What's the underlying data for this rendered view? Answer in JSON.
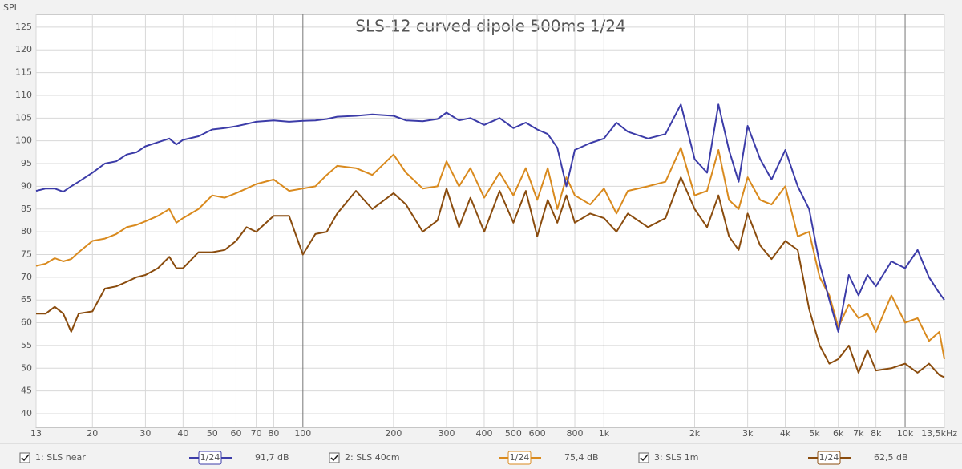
{
  "chart_data": {
    "type": "line",
    "title": "SLS-12 curved dipole 500ms 1/24",
    "y_label": "SPL",
    "x_scale": "log",
    "grid": true,
    "xlim": [
      13,
      13500
    ],
    "ylim": [
      37,
      127.8
    ],
    "yticks": [
      40,
      45,
      50,
      55,
      60,
      65,
      70,
      75,
      80,
      85,
      90,
      95,
      100,
      105,
      110,
      115,
      120,
      125
    ],
    "xticks": [
      13,
      20,
      30,
      40,
      50,
      60,
      70,
      80,
      100,
      200,
      300,
      400,
      500,
      600,
      800,
      {
        "value": 1000,
        "label": "1k"
      },
      {
        "value": 2000,
        "label": "2k"
      },
      {
        "value": 3000,
        "label": "3k"
      },
      {
        "value": 4000,
        "label": "4k"
      },
      {
        "value": 5000,
        "label": "5k"
      },
      {
        "value": 6000,
        "label": "6k"
      },
      {
        "value": 7000,
        "label": "7k"
      },
      {
        "value": 8000,
        "label": "8k"
      },
      {
        "value": 10000,
        "label": "10k"
      },
      {
        "value": 13500,
        "label": "13,5kHz"
      }
    ],
    "x": [
      13,
      14,
      15,
      16,
      17,
      18,
      20,
      22,
      24,
      26,
      28,
      30,
      33,
      36,
      38,
      40,
      45,
      50,
      55,
      60,
      65,
      70,
      80,
      90,
      100,
      110,
      120,
      130,
      150,
      170,
      200,
      220,
      250,
      280,
      300,
      330,
      360,
      400,
      450,
      500,
      550,
      600,
      650,
      700,
      750,
      800,
      900,
      1000,
      1100,
      1200,
      1400,
      1600,
      1800,
      2000,
      2200,
      2400,
      2600,
      2800,
      3000,
      3300,
      3600,
      4000,
      4400,
      4800,
      5200,
      5600,
      6000,
      6500,
      7000,
      7500,
      8000,
      9000,
      10000,
      11000,
      12000,
      13000,
      13500
    ],
    "series": [
      {
        "name": "1: SLS near",
        "color": "#3c3ca8",
        "smoothing": "1/24",
        "level": "91,7 dB",
        "values": [
          89,
          89.5,
          89.5,
          88.8,
          90,
          91,
          93,
          95,
          95.5,
          97,
          97.5,
          98.8,
          99.7,
          100.5,
          99.2,
          100.2,
          101,
          102.5,
          102.8,
          103.2,
          103.7,
          104.2,
          104.5,
          104.2,
          104.4,
          104.5,
          104.8,
          105.3,
          105.5,
          105.8,
          105.5,
          104.5,
          104.3,
          104.8,
          106.2,
          104.5,
          105,
          103.5,
          105,
          102.8,
          104,
          102.5,
          101.5,
          98.5,
          90,
          98,
          99.5,
          100.5,
          104,
          102,
          100.5,
          101.5,
          108,
          96,
          93,
          108,
          98,
          91,
          103.3,
          96,
          91.5,
          98,
          90,
          85,
          73,
          65,
          58,
          70.5,
          66,
          70.5,
          68,
          73.5,
          72,
          76,
          70,
          66.5,
          65
        ]
      },
      {
        "name": "2: SLS 40cm",
        "color": "#d98a1e",
        "smoothing": "1/24",
        "level": "75,4 dB",
        "values": [
          72.5,
          73,
          74.2,
          73.5,
          74,
          75.5,
          78,
          78.5,
          79.5,
          81,
          81.5,
          82.3,
          83.5,
          85,
          82,
          83,
          85,
          88,
          87.5,
          88.5,
          89.5,
          90.5,
          91.5,
          89,
          89.5,
          90,
          92.5,
          94.5,
          94,
          92.5,
          97,
          93,
          89.5,
          90,
          95.5,
          90,
          94,
          87.5,
          93,
          88,
          94,
          87,
          94,
          85,
          92,
          88,
          86,
          89.5,
          84,
          89,
          90,
          91,
          98.5,
          88,
          89,
          98,
          87,
          85,
          92,
          87,
          86,
          90,
          79,
          80,
          70,
          66,
          59,
          64,
          61,
          62,
          58,
          66,
          60,
          61,
          56,
          58,
          52
        ]
      },
      {
        "name": "3: SLS 1m",
        "color": "#8a4c0e",
        "smoothing": "1/24",
        "level": "62,5 dB",
        "values": [
          62,
          62,
          63.5,
          62,
          58,
          62,
          62.5,
          67.5,
          68,
          69,
          70,
          70.5,
          72,
          74.5,
          72,
          72,
          75.5,
          75.5,
          76,
          78,
          81,
          80,
          83.5,
          83.5,
          75,
          79.5,
          80,
          84,
          89,
          85,
          88.5,
          86,
          80,
          82.5,
          89.5,
          81,
          87.5,
          80,
          89,
          82,
          89,
          79,
          87,
          82,
          88,
          82,
          84,
          83,
          80,
          84,
          81,
          83,
          92,
          85,
          81,
          88,
          79,
          76,
          84,
          77,
          74,
          78,
          76,
          63,
          55,
          51,
          52,
          55,
          49,
          54,
          49.5,
          50,
          51,
          49,
          51,
          48.5,
          48
        ]
      }
    ]
  }
}
